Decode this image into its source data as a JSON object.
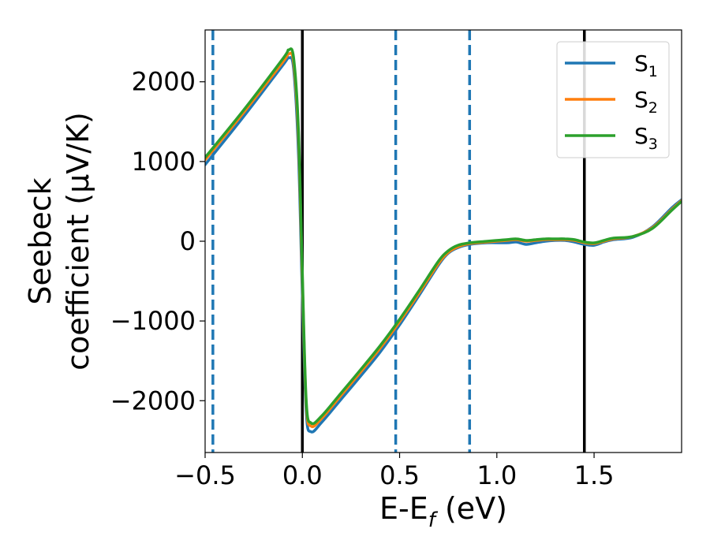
{
  "chart_data": {
    "type": "line",
    "xlabel": {
      "main": "E-E",
      "sub": "f",
      "tail": " (eV)"
    },
    "ylabel": {
      "line1": "Seebeck",
      "line2": "coefficient  (μV/K)"
    },
    "xlim": [
      -0.5,
      1.95
    ],
    "ylim": [
      -2650,
      2650
    ],
    "xticks": [
      -0.5,
      0.0,
      0.5,
      1.0,
      1.5
    ],
    "xtick_labels": [
      "−0.5",
      "0.0",
      "0.5",
      "1.0",
      "1.5"
    ],
    "yticks": [
      -2000,
      -1000,
      0,
      1000,
      2000
    ],
    "ytick_labels": [
      "−2000",
      "−1000",
      "0",
      "1000",
      "2000"
    ],
    "grid": false,
    "legend_position": "top-right",
    "vlines_solid": [
      0.0,
      1.45
    ],
    "vlines_dashed": [
      -0.46,
      0.48,
      0.86
    ],
    "vline_solid_color": "#000000",
    "vline_dashed_color": "#1f77b4",
    "series": [
      {
        "name": "S",
        "sub": "1",
        "color": "#1f77b4",
        "points": [
          [
            -0.5,
            960
          ],
          [
            -0.3,
            1570
          ],
          [
            -0.1,
            2210
          ],
          [
            -0.07,
            2300
          ],
          [
            -0.045,
            2160
          ],
          [
            -0.02,
            1100
          ],
          [
            0.0,
            -700
          ],
          [
            0.02,
            -2150
          ],
          [
            0.045,
            -2390
          ],
          [
            0.1,
            -2270
          ],
          [
            0.2,
            -1980
          ],
          [
            0.3,
            -1690
          ],
          [
            0.4,
            -1390
          ],
          [
            0.5,
            -1050
          ],
          [
            0.6,
            -680
          ],
          [
            0.7,
            -300
          ],
          [
            0.75,
            -150
          ],
          [
            0.8,
            -80
          ],
          [
            0.86,
            -40
          ],
          [
            0.95,
            -20
          ],
          [
            1.05,
            -20
          ],
          [
            1.1,
            -10
          ],
          [
            1.15,
            -40
          ],
          [
            1.2,
            -20
          ],
          [
            1.25,
            0
          ],
          [
            1.3,
            10
          ],
          [
            1.35,
            10
          ],
          [
            1.4,
            -10
          ],
          [
            1.45,
            -40
          ],
          [
            1.5,
            -50
          ],
          [
            1.55,
            -10
          ],
          [
            1.6,
            20
          ],
          [
            1.7,
            50
          ],
          [
            1.8,
            180
          ],
          [
            1.9,
            420
          ],
          [
            1.95,
            520
          ]
        ]
      },
      {
        "name": "S",
        "sub": "2",
        "color": "#ff7f0e",
        "points": [
          [
            -0.5,
            1020
          ],
          [
            -0.3,
            1620
          ],
          [
            -0.1,
            2250
          ],
          [
            -0.07,
            2350
          ],
          [
            -0.045,
            2240
          ],
          [
            -0.02,
            1300
          ],
          [
            0.0,
            -500
          ],
          [
            0.02,
            -2050
          ],
          [
            0.045,
            -2320
          ],
          [
            0.1,
            -2220
          ],
          [
            0.2,
            -1930
          ],
          [
            0.3,
            -1640
          ],
          [
            0.4,
            -1340
          ],
          [
            0.5,
            -1010
          ],
          [
            0.6,
            -650
          ],
          [
            0.7,
            -280
          ],
          [
            0.75,
            -140
          ],
          [
            0.8,
            -70
          ],
          [
            0.86,
            -30
          ],
          [
            0.95,
            -10
          ],
          [
            1.05,
            10
          ],
          [
            1.1,
            20
          ],
          [
            1.15,
            0
          ],
          [
            1.2,
            10
          ],
          [
            1.25,
            20
          ],
          [
            1.3,
            20
          ],
          [
            1.35,
            20
          ],
          [
            1.4,
            10
          ],
          [
            1.45,
            -20
          ],
          [
            1.5,
            -30
          ],
          [
            1.55,
            0
          ],
          [
            1.6,
            30
          ],
          [
            1.7,
            60
          ],
          [
            1.8,
            170
          ],
          [
            1.9,
            400
          ],
          [
            1.95,
            510
          ]
        ]
      },
      {
        "name": "S",
        "sub": "3",
        "color": "#2ca02c",
        "points": [
          [
            -0.5,
            1050
          ],
          [
            -0.3,
            1650
          ],
          [
            -0.1,
            2290
          ],
          [
            -0.07,
            2400
          ],
          [
            -0.045,
            2300
          ],
          [
            -0.02,
            1400
          ],
          [
            0.0,
            -400
          ],
          [
            0.02,
            -2000
          ],
          [
            0.045,
            -2280
          ],
          [
            0.1,
            -2190
          ],
          [
            0.2,
            -1900
          ],
          [
            0.3,
            -1610
          ],
          [
            0.4,
            -1310
          ],
          [
            0.5,
            -980
          ],
          [
            0.6,
            -620
          ],
          [
            0.7,
            -250
          ],
          [
            0.75,
            -120
          ],
          [
            0.8,
            -50
          ],
          [
            0.86,
            -20
          ],
          [
            0.95,
            0
          ],
          [
            1.05,
            20
          ],
          [
            1.1,
            30
          ],
          [
            1.15,
            10
          ],
          [
            1.2,
            20
          ],
          [
            1.25,
            30
          ],
          [
            1.3,
            30
          ],
          [
            1.35,
            30
          ],
          [
            1.4,
            20
          ],
          [
            1.45,
            -10
          ],
          [
            1.5,
            -20
          ],
          [
            1.55,
            10
          ],
          [
            1.6,
            40
          ],
          [
            1.7,
            60
          ],
          [
            1.8,
            160
          ],
          [
            1.9,
            390
          ],
          [
            1.95,
            500
          ]
        ]
      }
    ]
  }
}
